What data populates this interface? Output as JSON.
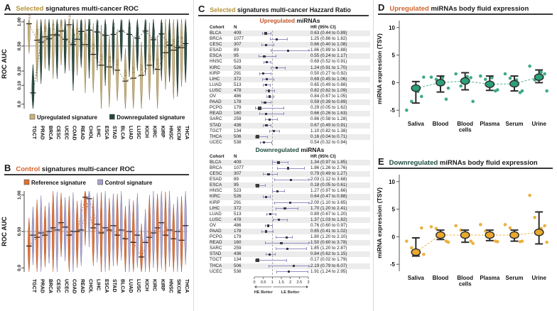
{
  "panels": {
    "A": {
      "letter": "A",
      "title_hl": "Selected",
      "title_rest": " signatures multi-cancer ROC",
      "hl_color": "#b5933c"
    },
    "B": {
      "letter": "B",
      "title_hl": "Control",
      "title_rest": " signatures multi-cancer ROC",
      "hl_color": "#d2622a"
    },
    "C": {
      "letter": "C",
      "title_hl": "Selected",
      "title_rest": " signatures multi-cancer Hazzard Ratio",
      "hl_color": "#b5933c"
    },
    "D": {
      "letter": "D",
      "title_hl": "Upregulated",
      "title_rest": " miRNAs body fluid expression",
      "hl_color": "#d2622a"
    },
    "E": {
      "letter": "E",
      "title_hl": "Downregulated",
      "title_rest": " miRNAs body fluid expression",
      "hl_color": "#1f4a3f"
    }
  },
  "chart_data": [
    {
      "panel": "A",
      "type": "violin",
      "title": "Selected signatures multi-cancer ROC",
      "ylabel": "ROC AUC",
      "yticks": [
        "1.00",
        "0.50",
        "0.20",
        "0.10",
        "0.0"
      ],
      "y_anchors": {
        "v": [
          0,
          0.1,
          0.2,
          0.5,
          1.0
        ],
        "f": [
          0.95,
          0.74,
          0.58,
          0.3,
          0.03
        ]
      },
      "gridline": 0.5,
      "categories": [
        "TGCT",
        "PRAD",
        "BRCA",
        "CESC",
        "UCEC",
        "COAD",
        "READ",
        "CHOL",
        "LIHC",
        "ESCA",
        "STAD",
        "BLCA",
        "LUAD",
        "LUSC",
        "KICH",
        "KIRC",
        "KIRP",
        "HNSC",
        "SKCM",
        "THCA"
      ],
      "series": [
        {
          "name": "Upregulated signature",
          "color": "#c9b179",
          "edge": "#8a7440",
          "label_color": "#7a6a33",
          "means": [
            0.96,
            0.62,
            0.69,
            0.73,
            0.81,
            0.94,
            0.64,
            0.53,
            0.4,
            0.27,
            0.25,
            0.21,
            0.13,
            0.15,
            0.17,
            0.27,
            0.22,
            0.42,
            0.45,
            0.48
          ]
        },
        {
          "name": "Downregulated signature",
          "color": "#24453b",
          "edge": "#16302a",
          "label_color": "#2f4f45",
          "means": [
            0.06,
            0.58,
            0.65,
            0.73,
            0.64,
            0.53,
            0.8,
            0.83,
            0.79,
            0.72,
            0.74,
            0.81,
            0.74,
            0.66,
            0.81,
            0.63,
            0.75,
            0.52,
            0.48,
            0.55
          ]
        }
      ],
      "show_labels": true,
      "legend_position": "bottom"
    },
    {
      "panel": "B",
      "type": "violin",
      "title": "Control signatures multi-cancer ROC",
      "ylabel": "ROC AUC",
      "yticks": [
        "1.00",
        "0.50",
        "0.0"
      ],
      "y_anchors": {
        "v": [
          0,
          0.5,
          1.0
        ],
        "f": [
          0.95,
          0.5,
          0.05
        ]
      },
      "gridline": 0.5,
      "categories": [
        "TGCT",
        "PRAD",
        "BRCA",
        "CESC",
        "UCEC",
        "COAD",
        "READ",
        "CHOL",
        "LIHC",
        "ESCA",
        "STAD",
        "BLCA",
        "LUAD",
        "LUSC",
        "KICH",
        "KIRC",
        "KIRP",
        "HNSC",
        "SKCM",
        "THCA"
      ],
      "series": [
        {
          "name": "Reference signature",
          "color": "#dd6f33",
          "edge": "#b4511c",
          "label_color": "#9c4a1d",
          "means": [
            0.3,
            0.42,
            0.45,
            0.55,
            0.62,
            0.45,
            0.5,
            0.97,
            0.55,
            0.48,
            0.52,
            0.45,
            0.4,
            0.35,
            0.15,
            0.42,
            0.55,
            0.45,
            0.4,
            0.38
          ]
        },
        {
          "name": "Control signature",
          "color": "#a7a3cb",
          "edge": "#7d78ad",
          "label_color": "#5c5788",
          "means": [
            0.45,
            0.48,
            0.5,
            0.52,
            0.56,
            0.5,
            0.52,
            0.95,
            0.6,
            0.55,
            0.58,
            0.52,
            0.5,
            0.45,
            0.35,
            0.48,
            0.62,
            0.52,
            0.5,
            0.58
          ]
        }
      ],
      "show_labels": false,
      "legend_position": "top"
    },
    {
      "panel": "C_up",
      "type": "forest",
      "subtitle_hl": "Upregulated",
      "subtitle_rest": " miRNAs",
      "subtitle_color": "#c0552a",
      "columns": [
        "Cohort",
        "N",
        "HR (95% CI)"
      ],
      "rows": [
        {
          "cohort": "BLCA",
          "n": "409",
          "hr": 0.63,
          "lo": 0.44,
          "hi": 0.89,
          "label": "0.63 (0.44 to 0.89)"
        },
        {
          "cohort": "BRCA",
          "n": "1077",
          "hr": 1.25,
          "lo": 0.86,
          "hi": 1.82,
          "label": "1.25 (0.86 to 1.82)"
        },
        {
          "cohort": "CESC",
          "n": "307",
          "hr": 0.66,
          "lo": 0.4,
          "hi": 1.08,
          "label": "0.66 (0.40 to 1.08)"
        },
        {
          "cohort": "ESAD",
          "n": "89",
          "hr": 1.86,
          "lo": 0.89,
          "hi": 3.88,
          "label": "1.86 (0.89 to 3.88)"
        },
        {
          "cohort": "ESCA",
          "n": "95",
          "hr": 0.55,
          "lo": 0.24,
          "hi": 1.17,
          "label": "0.55 (0.24 to 1.17)"
        },
        {
          "cohort": "HNSC",
          "n": "523",
          "hr": 0.69,
          "lo": 0.52,
          "hi": 0.91,
          "label": "0.69 (0.52 to 0.91)"
        },
        {
          "cohort": "KIRC",
          "n": "526",
          "hr": 1.24,
          "lo": 0.91,
          "hi": 1.7,
          "label": "1.24 (0.91 to 1.70)"
        },
        {
          "cohort": "KIRP",
          "n": "291",
          "hr": 0.5,
          "lo": 0.27,
          "hi": 0.92,
          "label": "0.50 (0.27 to 0.92)"
        },
        {
          "cohort": "LIHC",
          "n": "372",
          "hr": 0.69,
          "lo": 0.45,
          "hi": 1.06,
          "label": "0.69 (0.45 to 1.06)"
        },
        {
          "cohort": "LUAD",
          "n": "513",
          "hr": 0.65,
          "lo": 0.49,
          "hi": 0.88,
          "label": "0.65 (0.49 to 0.88)"
        },
        {
          "cohort": "LUSC",
          "n": "478",
          "hr": 0.82,
          "lo": 0.62,
          "hi": 1.09,
          "label": "0.82 (0.62 to 1.09)"
        },
        {
          "cohort": "OV",
          "n": "486",
          "hr": 0.84,
          "lo": 0.67,
          "hi": 1.05,
          "label": "0.84 (0.67 to 1.05)"
        },
        {
          "cohort": "PAAD",
          "n": "178",
          "hr": 0.59,
          "lo": 0.39,
          "hi": 0.89,
          "label": "0.59 (0.39 to 0.89)"
        },
        {
          "cohort": "PCPG",
          "n": "179",
          "hr": 0.29,
          "lo": 0.05,
          "hi": 1.62,
          "label": "0.29 (0.05 to 1.62)"
        },
        {
          "cohort": "READ",
          "n": "160",
          "hr": 0.66,
          "lo": 0.26,
          "hi": 1.63,
          "label": "0.66 (0.26 to 1.63)"
        },
        {
          "cohort": "SARC",
          "n": "259",
          "hr": 0.86,
          "lo": 0.58,
          "hi": 1.28,
          "label": "0.86 (0.58 to 1.28)"
        },
        {
          "cohort": "STAD",
          "n": "436",
          "hr": 0.67,
          "lo": 0.49,
          "hi": 0.91,
          "label": "0.67 (0.49 to 0.91)"
        },
        {
          "cohort": "TGCT",
          "n": "134",
          "hr": 1.1,
          "lo": 0.82,
          "hi": 1.38,
          "label": "1.10 (0.82 to 1.38)"
        },
        {
          "cohort": "THCA",
          "n": "506",
          "hr": 0.16,
          "lo": 0.04,
          "hi": 0.71,
          "label": "0.16 (0.04 to 0.71)"
        },
        {
          "cohort": "UCEC",
          "n": "538",
          "hr": 0.54,
          "lo": 0.32,
          "hi": 0.94,
          "label": "0.54 (0.32 to 0.94)"
        }
      ]
    },
    {
      "panel": "C_down",
      "type": "forest",
      "subtitle_hl": "Downregulated",
      "subtitle_rest": " miRNAs",
      "subtitle_color": "#1f4a3f",
      "columns": [
        "Cohort",
        "N",
        "HR (95% CI)"
      ],
      "rows": [
        {
          "cohort": "BLCA",
          "n": "409",
          "hr": 1.34,
          "lo": 0.97,
          "hi": 1.85,
          "label": "1.34 (0.97 to 1.85)"
        },
        {
          "cohort": "BRCA",
          "n": "1077",
          "hr": 1.86,
          "lo": 1.26,
          "hi": 2.76,
          "label": "1.86 (1.26 to 2.76)"
        },
        {
          "cohort": "CESC",
          "n": "307",
          "hr": 0.79,
          "lo": 0.49,
          "hi": 1.27,
          "label": "0.79 (0.49 to 1.27)"
        },
        {
          "cohort": "ESAD",
          "n": "89",
          "hr": 2.03,
          "lo": 1.12,
          "hi": 3.68,
          "label": "2.03 (1.12 to 3.68)"
        },
        {
          "cohort": "ESCA",
          "n": "95",
          "hr": 0.18,
          "lo": 0.05,
          "hi": 0.61,
          "label": "0.18 (0.05 to 0.61)"
        },
        {
          "cohort": "HNSC",
          "n": "523",
          "hr": 1.27,
          "lo": 0.97,
          "hi": 1.66,
          "label": "1.27 (0.97 to 1.66)"
        },
        {
          "cohort": "KIRC",
          "n": "526",
          "hr": 0.64,
          "lo": 0.47,
          "hi": 0.88,
          "label": "0.64 (0.47 to 0.88)"
        },
        {
          "cohort": "KIRP",
          "n": "291",
          "hr": 2.0,
          "lo": 1.1,
          "hi": 3.65,
          "label": "2.00 (1.10 to 3.65)"
        },
        {
          "cohort": "LIHC",
          "n": "372",
          "hr": 1.7,
          "lo": 1.2,
          "hi": 2.41,
          "label": "1.70 (1.20 to 2.41)"
        },
        {
          "cohort": "LUAD",
          "n": "513",
          "hr": 0.89,
          "lo": 0.67,
          "hi": 1.2,
          "label": "0.89 (0.67 to 1.20)"
        },
        {
          "cohort": "LUSC",
          "n": "478",
          "hr": 1.37,
          "lo": 1.03,
          "hi": 1.82,
          "label": "1.37 (1.03 to 1.82)"
        },
        {
          "cohort": "OV",
          "n": "486",
          "hr": 0.76,
          "lo": 0.6,
          "hi": 0.97,
          "label": "0.76 (0.60 to 0.97)"
        },
        {
          "cohort": "PAAD",
          "n": "178",
          "hr": 0.65,
          "lo": 0.41,
          "hi": 1.02,
          "label": "0.65 (0.41 to 1.02)"
        },
        {
          "cohort": "PCPG",
          "n": "179",
          "hr": 1.8,
          "lo": 1.2,
          "hi": 2.1,
          "label": "1.80 (1.20 to 2.10)"
        },
        {
          "cohort": "READ",
          "n": "160",
          "hr": 1.5,
          "lo": 0.6,
          "hi": 3.78,
          "label": "1.50 (0.60 to 3.78)"
        },
        {
          "cohort": "SARC",
          "n": "259",
          "hr": 1.85,
          "lo": 1.2,
          "hi": 2.87,
          "label": "1.85 (1.20 to 2.87)"
        },
        {
          "cohort": "STAD",
          "n": "436",
          "hr": 0.84,
          "lo": 0.62,
          "hi": 1.15,
          "label": "0.84 (0.62 to 1.15)"
        },
        {
          "cohort": "TGCT",
          "n": "134",
          "hr": 0.17,
          "lo": 0.02,
          "hi": 1.79,
          "label": "0.17 (0.02 to 1.79)"
        },
        {
          "cohort": "THCA",
          "n": "506",
          "hr": 2.19,
          "lo": 0.79,
          "hi": 6.07,
          "label": "2.19 (0.79 to 6.07)"
        },
        {
          "cohort": "UCEC",
          "n": "538",
          "hr": 1.91,
          "lo": 1.24,
          "hi": 2.95,
          "label": "1.91 (1.24 to 2.95)"
        }
      ],
      "axis": {
        "ticks": [
          "0",
          "0.5",
          "1",
          "1.5",
          "2",
          "2.5",
          "3"
        ],
        "tick_values": [
          0,
          0.5,
          1,
          1.5,
          2,
          2.5,
          3
        ],
        "left_label": "HE Better",
        "right_label": "LE Better"
      }
    },
    {
      "panel": "D",
      "type": "scatter",
      "title": "Upregulated miRNAs body fluid expression",
      "ylabel": "miRNA expression (TSV)",
      "yticks": [
        10,
        5,
        0,
        -5
      ],
      "ylim": [
        -6,
        11
      ],
      "color": "#2ba07a",
      "edge": "#1e6e54",
      "categories": [
        "Saliva",
        "Blood",
        "Blood cells",
        "Plasma",
        "Serum",
        "Urine"
      ],
      "means": [
        -1.0,
        0.0,
        0.3,
        -0.3,
        -0.2,
        1.0
      ],
      "err_low": [
        -3.7,
        -1.7,
        -1.3,
        -1.4,
        -1.5,
        0.0
      ],
      "err_high": [
        0.2,
        1.2,
        1.8,
        1.2,
        1.2,
        2.3
      ],
      "points": [
        [
          -5.0,
          -2.5,
          -3.4,
          1.0,
          -1.6
        ],
        [
          1.0,
          -3.0,
          0.6,
          -1.0,
          0.9
        ],
        [
          1.6,
          0.9,
          -0.6,
          -3.4,
          1.1
        ],
        [
          1.2,
          -1.5,
          0.6,
          -1.3,
          0.9
        ],
        [
          1.6,
          -1.8,
          0.8,
          -1.5,
          0.5
        ],
        [
          3.0,
          1.6,
          0.5,
          -1.5,
          1.9
        ]
      ]
    },
    {
      "panel": "E",
      "type": "scatter",
      "title": "Downregulated miRNAs body fluid expression",
      "ylabel": "miRNA expression (TSV)",
      "yticks": [
        10,
        5,
        0,
        -5
      ],
      "ylim": [
        -6,
        11
      ],
      "color": "#eaa92c",
      "edge": "#b07a14",
      "categories": [
        "Saliva",
        "Blood",
        "Blood cells",
        "Plasma",
        "Serum",
        "Urine"
      ],
      "means": [
        -2.8,
        0.3,
        0.3,
        0.3,
        0.3,
        0.8
      ],
      "err_low": [
        -3.5,
        -0.5,
        -1.0,
        -0.7,
        -0.8,
        -1.3
      ],
      "err_high": [
        -0.2,
        1.2,
        1.2,
        1.2,
        1.2,
        4.5
      ],
      "points": [
        [
          -0.8,
          1.6,
          -2.0,
          -3.2
        ],
        [
          1.8,
          -0.8,
          1.5,
          -1.0
        ],
        [
          2.0,
          -0.8,
          1.2,
          -1.2
        ],
        [
          2.2,
          -0.8,
          1.0,
          -0.9
        ],
        [
          2.2,
          -0.9,
          1.6,
          -0.8
        ],
        [
          7.5,
          2.0,
          3.5,
          -1.0,
          1.5
        ]
      ]
    }
  ]
}
